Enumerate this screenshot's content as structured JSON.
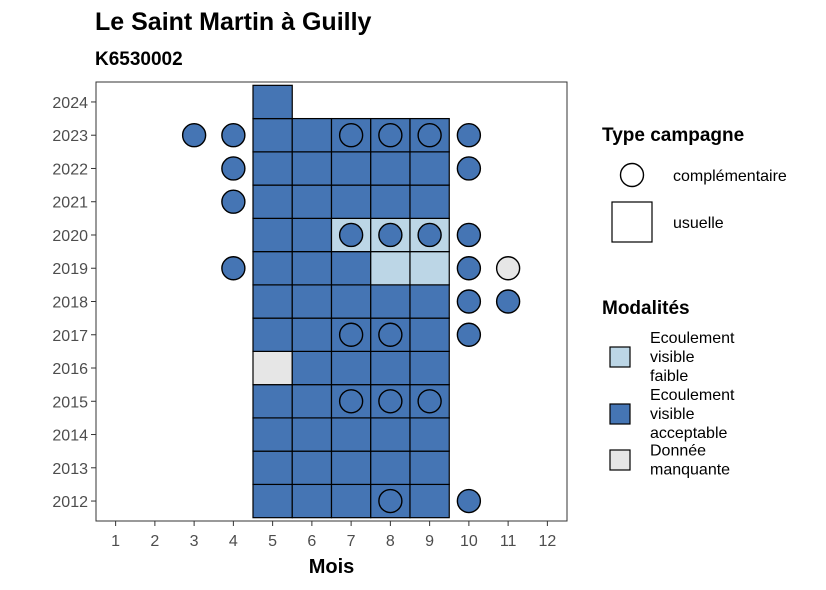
{
  "chart_data": {
    "type": "heatmap",
    "title": "Le Saint Martin à Guilly",
    "subtitle": "K6530002",
    "xlabel": "Mois",
    "ylabel": "",
    "x_ticks": [
      1,
      2,
      3,
      4,
      5,
      6,
      7,
      8,
      9,
      10,
      11,
      12
    ],
    "y_ticks": [
      2012,
      2013,
      2014,
      2015,
      2016,
      2017,
      2018,
      2019,
      2020,
      2021,
      2022,
      2023,
      2024
    ],
    "xlim": [
      0.5,
      12.5
    ],
    "ylim": [
      2011.4,
      2024.6
    ],
    "grid": false,
    "legend_position": "right",
    "legend_type": {
      "title": "Type campagne",
      "entries": [
        {
          "key": "complementaire",
          "label": "complémentaire",
          "shape": "circle"
        },
        {
          "key": "usuelle",
          "label": "usuelle",
          "shape": "square"
        }
      ]
    },
    "legend_modalites": {
      "title": "Modalités",
      "entries": [
        {
          "key": "faible",
          "label_lines": [
            "Ecoulement",
            "visible",
            "faible"
          ],
          "color": "#bcd6e6"
        },
        {
          "key": "acceptable",
          "label_lines": [
            "Ecoulement",
            "visible",
            "acceptable"
          ],
          "color": "#4575b4"
        },
        {
          "key": "manquante",
          "label_lines": [
            "Donnée",
            "manquante"
          ],
          "color": "#e6e6e6"
        }
      ]
    },
    "points": [
      {
        "year": 2012,
        "month": 5,
        "type": "usuelle",
        "modalite": "acceptable"
      },
      {
        "year": 2012,
        "month": 6,
        "type": "usuelle",
        "modalite": "acceptable"
      },
      {
        "year": 2012,
        "month": 7,
        "type": "usuelle",
        "modalite": "acceptable"
      },
      {
        "year": 2012,
        "month": 8,
        "type": "usuelle",
        "modalite": "acceptable"
      },
      {
        "year": 2012,
        "month": 9,
        "type": "usuelle",
        "modalite": "acceptable"
      },
      {
        "year": 2012,
        "month": 8,
        "type": "complementaire",
        "modalite": "acceptable"
      },
      {
        "year": 2012,
        "month": 10,
        "type": "complementaire",
        "modalite": "acceptable"
      },
      {
        "year": 2013,
        "month": 5,
        "type": "usuelle",
        "modalite": "acceptable"
      },
      {
        "year": 2013,
        "month": 6,
        "type": "usuelle",
        "modalite": "acceptable"
      },
      {
        "year": 2013,
        "month": 7,
        "type": "usuelle",
        "modalite": "acceptable"
      },
      {
        "year": 2013,
        "month": 8,
        "type": "usuelle",
        "modalite": "acceptable"
      },
      {
        "year": 2013,
        "month": 9,
        "type": "usuelle",
        "modalite": "acceptable"
      },
      {
        "year": 2014,
        "month": 5,
        "type": "usuelle",
        "modalite": "acceptable"
      },
      {
        "year": 2014,
        "month": 6,
        "type": "usuelle",
        "modalite": "acceptable"
      },
      {
        "year": 2014,
        "month": 7,
        "type": "usuelle",
        "modalite": "acceptable"
      },
      {
        "year": 2014,
        "month": 8,
        "type": "usuelle",
        "modalite": "acceptable"
      },
      {
        "year": 2014,
        "month": 9,
        "type": "usuelle",
        "modalite": "acceptable"
      },
      {
        "year": 2015,
        "month": 5,
        "type": "usuelle",
        "modalite": "acceptable"
      },
      {
        "year": 2015,
        "month": 6,
        "type": "usuelle",
        "modalite": "acceptable"
      },
      {
        "year": 2015,
        "month": 7,
        "type": "usuelle",
        "modalite": "acceptable"
      },
      {
        "year": 2015,
        "month": 8,
        "type": "usuelle",
        "modalite": "acceptable"
      },
      {
        "year": 2015,
        "month": 9,
        "type": "usuelle",
        "modalite": "acceptable"
      },
      {
        "year": 2015,
        "month": 7,
        "type": "complementaire",
        "modalite": "acceptable"
      },
      {
        "year": 2015,
        "month": 8,
        "type": "complementaire",
        "modalite": "acceptable"
      },
      {
        "year": 2015,
        "month": 9,
        "type": "complementaire",
        "modalite": "acceptable"
      },
      {
        "year": 2016,
        "month": 5,
        "type": "usuelle",
        "modalite": "manquante"
      },
      {
        "year": 2016,
        "month": 6,
        "type": "usuelle",
        "modalite": "acceptable"
      },
      {
        "year": 2016,
        "month": 7,
        "type": "usuelle",
        "modalite": "acceptable"
      },
      {
        "year": 2016,
        "month": 8,
        "type": "usuelle",
        "modalite": "acceptable"
      },
      {
        "year": 2016,
        "month": 9,
        "type": "usuelle",
        "modalite": "acceptable"
      },
      {
        "year": 2017,
        "month": 5,
        "type": "usuelle",
        "modalite": "acceptable"
      },
      {
        "year": 2017,
        "month": 6,
        "type": "usuelle",
        "modalite": "acceptable"
      },
      {
        "year": 2017,
        "month": 7,
        "type": "usuelle",
        "modalite": "acceptable"
      },
      {
        "year": 2017,
        "month": 8,
        "type": "usuelle",
        "modalite": "acceptable"
      },
      {
        "year": 2017,
        "month": 9,
        "type": "usuelle",
        "modalite": "acceptable"
      },
      {
        "year": 2017,
        "month": 7,
        "type": "complementaire",
        "modalite": "acceptable"
      },
      {
        "year": 2017,
        "month": 8,
        "type": "complementaire",
        "modalite": "acceptable"
      },
      {
        "year": 2017,
        "month": 10,
        "type": "complementaire",
        "modalite": "acceptable"
      },
      {
        "year": 2018,
        "month": 5,
        "type": "usuelle",
        "modalite": "acceptable"
      },
      {
        "year": 2018,
        "month": 6,
        "type": "usuelle",
        "modalite": "acceptable"
      },
      {
        "year": 2018,
        "month": 7,
        "type": "usuelle",
        "modalite": "acceptable"
      },
      {
        "year": 2018,
        "month": 8,
        "type": "usuelle",
        "modalite": "acceptable"
      },
      {
        "year": 2018,
        "month": 9,
        "type": "usuelle",
        "modalite": "acceptable"
      },
      {
        "year": 2018,
        "month": 10,
        "type": "complementaire",
        "modalite": "acceptable"
      },
      {
        "year": 2018,
        "month": 11,
        "type": "complementaire",
        "modalite": "acceptable"
      },
      {
        "year": 2019,
        "month": 5,
        "type": "usuelle",
        "modalite": "acceptable"
      },
      {
        "year": 2019,
        "month": 6,
        "type": "usuelle",
        "modalite": "acceptable"
      },
      {
        "year": 2019,
        "month": 7,
        "type": "usuelle",
        "modalite": "acceptable"
      },
      {
        "year": 2019,
        "month": 8,
        "type": "usuelle",
        "modalite": "faible"
      },
      {
        "year": 2019,
        "month": 9,
        "type": "usuelle",
        "modalite": "faible"
      },
      {
        "year": 2019,
        "month": 4,
        "type": "complementaire",
        "modalite": "acceptable"
      },
      {
        "year": 2019,
        "month": 10,
        "type": "complementaire",
        "modalite": "acceptable"
      },
      {
        "year": 2019,
        "month": 11,
        "type": "complementaire",
        "modalite": "manquante"
      },
      {
        "year": 2020,
        "month": 5,
        "type": "usuelle",
        "modalite": "acceptable"
      },
      {
        "year": 2020,
        "month": 6,
        "type": "usuelle",
        "modalite": "acceptable"
      },
      {
        "year": 2020,
        "month": 7,
        "type": "usuelle",
        "modalite": "faible"
      },
      {
        "year": 2020,
        "month": 8,
        "type": "usuelle",
        "modalite": "faible"
      },
      {
        "year": 2020,
        "month": 9,
        "type": "usuelle",
        "modalite": "faible"
      },
      {
        "year": 2020,
        "month": 7,
        "type": "complementaire",
        "modalite": "acceptable"
      },
      {
        "year": 2020,
        "month": 8,
        "type": "complementaire",
        "modalite": "acceptable"
      },
      {
        "year": 2020,
        "month": 9,
        "type": "complementaire",
        "modalite": "acceptable"
      },
      {
        "year": 2020,
        "month": 10,
        "type": "complementaire",
        "modalite": "acceptable"
      },
      {
        "year": 2021,
        "month": 5,
        "type": "usuelle",
        "modalite": "acceptable"
      },
      {
        "year": 2021,
        "month": 6,
        "type": "usuelle",
        "modalite": "acceptable"
      },
      {
        "year": 2021,
        "month": 7,
        "type": "usuelle",
        "modalite": "acceptable"
      },
      {
        "year": 2021,
        "month": 8,
        "type": "usuelle",
        "modalite": "acceptable"
      },
      {
        "year": 2021,
        "month": 9,
        "type": "usuelle",
        "modalite": "acceptable"
      },
      {
        "year": 2021,
        "month": 4,
        "type": "complementaire",
        "modalite": "acceptable"
      },
      {
        "year": 2022,
        "month": 5,
        "type": "usuelle",
        "modalite": "acceptable"
      },
      {
        "year": 2022,
        "month": 6,
        "type": "usuelle",
        "modalite": "acceptable"
      },
      {
        "year": 2022,
        "month": 7,
        "type": "usuelle",
        "modalite": "acceptable"
      },
      {
        "year": 2022,
        "month": 8,
        "type": "usuelle",
        "modalite": "acceptable"
      },
      {
        "year": 2022,
        "month": 9,
        "type": "usuelle",
        "modalite": "acceptable"
      },
      {
        "year": 2022,
        "month": 4,
        "type": "complementaire",
        "modalite": "acceptable"
      },
      {
        "year": 2022,
        "month": 10,
        "type": "complementaire",
        "modalite": "acceptable"
      },
      {
        "year": 2023,
        "month": 5,
        "type": "usuelle",
        "modalite": "acceptable"
      },
      {
        "year": 2023,
        "month": 6,
        "type": "usuelle",
        "modalite": "acceptable"
      },
      {
        "year": 2023,
        "month": 7,
        "type": "usuelle",
        "modalite": "acceptable"
      },
      {
        "year": 2023,
        "month": 8,
        "type": "usuelle",
        "modalite": "acceptable"
      },
      {
        "year": 2023,
        "month": 9,
        "type": "usuelle",
        "modalite": "acceptable"
      },
      {
        "year": 2023,
        "month": 3,
        "type": "complementaire",
        "modalite": "acceptable"
      },
      {
        "year": 2023,
        "month": 4,
        "type": "complementaire",
        "modalite": "acceptable"
      },
      {
        "year": 2023,
        "month": 7,
        "type": "complementaire",
        "modalite": "acceptable"
      },
      {
        "year": 2023,
        "month": 8,
        "type": "complementaire",
        "modalite": "acceptable"
      },
      {
        "year": 2023,
        "month": 9,
        "type": "complementaire",
        "modalite": "acceptable"
      },
      {
        "year": 2023,
        "month": 10,
        "type": "complementaire",
        "modalite": "acceptable"
      },
      {
        "year": 2024,
        "month": 5,
        "type": "usuelle",
        "modalite": "acceptable"
      }
    ]
  }
}
